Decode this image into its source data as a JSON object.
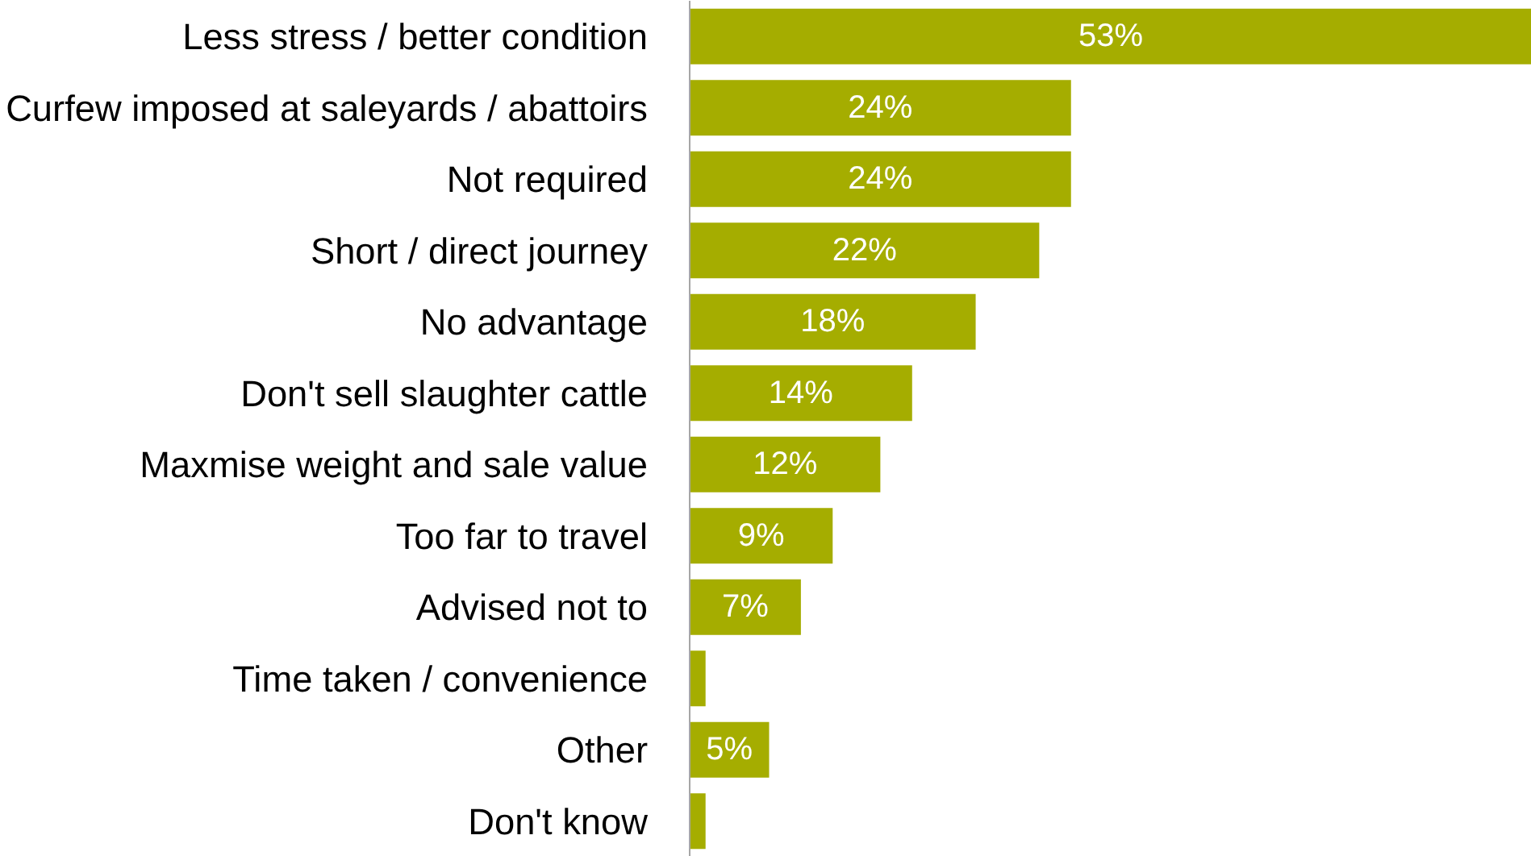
{
  "chart_data": {
    "type": "bar",
    "orientation": "horizontal",
    "categories": [
      "Less stress / better condition",
      "Curfew imposed at saleyards / abattoirs",
      "Not required",
      "Short / direct journey",
      "No advantage",
      "Don't sell slaughter cattle",
      "Maxmise weight and sale value",
      "Too far to travel",
      "Advised not to",
      "Time taken / convenience",
      "Other",
      "Don't know"
    ],
    "values": [
      53,
      24,
      24,
      22,
      18,
      14,
      12,
      9,
      7,
      1,
      5,
      1
    ],
    "value_labels": [
      "53%",
      "24%",
      "24%",
      "22%",
      "18%",
      "14%",
      "12%",
      "9%",
      "7%",
      null,
      "5%",
      null
    ],
    "color": "#a5ad00"
  }
}
